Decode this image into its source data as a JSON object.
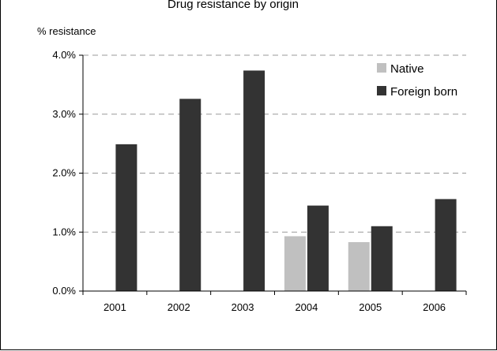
{
  "chart_data": {
    "type": "bar",
    "title": "Drug resistance by origin",
    "ylabel": "% resistance",
    "xlabel": "",
    "categories": [
      "2001",
      "2002",
      "2003",
      "2004",
      "2005",
      "2006"
    ],
    "series": [
      {
        "name": "Native",
        "color": "#c0c0c0",
        "values": [
          null,
          null,
          null,
          0.0093,
          0.0083,
          null
        ]
      },
      {
        "name": "Foreign born",
        "color": "#333333",
        "values": [
          0.0249,
          0.0326,
          0.0374,
          0.0145,
          0.011,
          0.0156
        ]
      }
    ],
    "ylim": [
      0,
      0.04
    ],
    "yticks": [
      "0.0%",
      "1.0%",
      "2.0%",
      "3.0%",
      "4.0%"
    ],
    "grid": "horizontal dashed",
    "legend_position": "top-right"
  }
}
